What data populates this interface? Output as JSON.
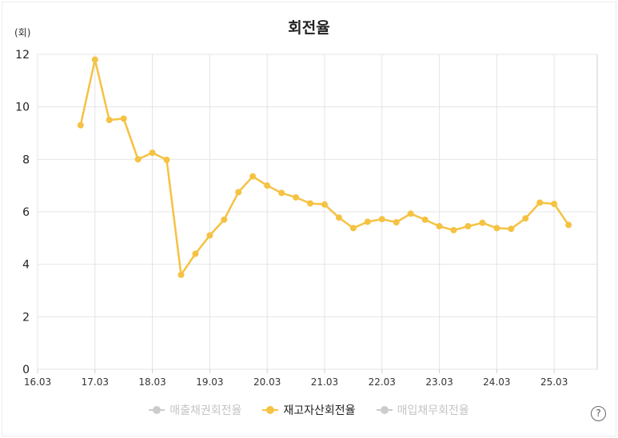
{
  "chart_data": {
    "type": "line",
    "title": "회전율",
    "ylabel": "(회)",
    "ylim": [
      0,
      12
    ],
    "y_ticks": [
      "0",
      "2",
      "4",
      "6",
      "8",
      "10",
      "12"
    ],
    "y_tick_values": [
      0,
      2,
      4,
      6,
      8,
      10,
      12
    ],
    "x_ticks": [
      "16.03",
      "17.03",
      "18.03",
      "19.03",
      "20.03",
      "21.03",
      "22.03",
      "23.03",
      "24.03",
      "25.03"
    ],
    "grid": true,
    "legend_position": "bottom",
    "series": [
      {
        "name": "매출채권회전율",
        "visible": false,
        "color": "#cccccc",
        "x": [],
        "values": []
      },
      {
        "name": "재고자산회전율",
        "visible": true,
        "color": "#f5c242",
        "x": [
          16.75,
          17.0,
          17.25,
          17.5,
          17.75,
          18.0,
          18.25,
          18.5,
          18.75,
          19.0,
          19.25,
          19.5,
          19.75,
          20.0,
          20.25,
          20.5,
          20.75,
          21.0,
          21.25,
          21.5,
          21.75,
          22.0,
          22.25,
          22.5,
          22.75,
          23.0,
          23.25,
          23.5,
          23.75,
          24.0,
          24.25,
          24.5,
          24.75,
          25.0,
          25.25
        ],
        "values": [
          9.3,
          11.8,
          9.5,
          9.55,
          8.0,
          8.25,
          7.98,
          3.6,
          4.4,
          5.1,
          5.7,
          6.75,
          7.35,
          7.0,
          6.72,
          6.55,
          6.32,
          6.28,
          5.78,
          5.38,
          5.62,
          5.72,
          5.6,
          5.93,
          5.7,
          5.45,
          5.3,
          5.45,
          5.58,
          5.38,
          5.35,
          5.75,
          6.35,
          6.3,
          5.5
        ]
      },
      {
        "name": "매입채무회전율",
        "visible": false,
        "color": "#cccccc",
        "x": [],
        "values": []
      }
    ]
  },
  "colors": {
    "grid": "#e4e4e4",
    "axis": "#cfcfcf",
    "active": "#f5c242",
    "inactive_text": "#c4c4c4",
    "active_text": "#222222"
  },
  "help": {
    "icon": "help-icon",
    "glyph": "?"
  }
}
